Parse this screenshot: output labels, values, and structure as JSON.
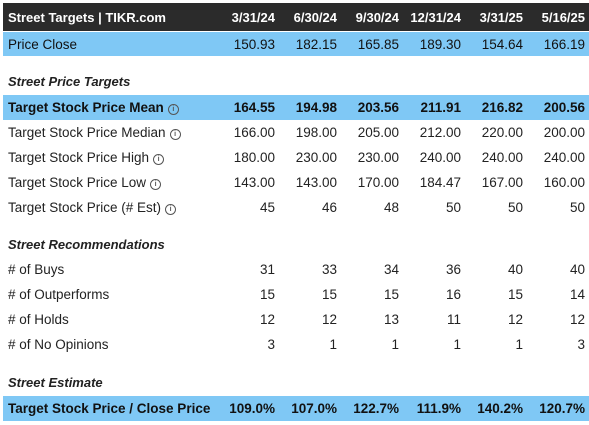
{
  "header": {
    "title": "Street Targets | TIKR.com",
    "dates": [
      "3/31/24",
      "6/30/24",
      "9/30/24",
      "12/31/24",
      "3/31/25",
      "5/16/25"
    ]
  },
  "price_close": {
    "label": "Price Close",
    "values": [
      "150.93",
      "182.15",
      "165.85",
      "189.30",
      "154.64",
      "166.19"
    ]
  },
  "sections": {
    "price_targets": "Street Price Targets",
    "recommendations": "Street Recommendations",
    "estimate": "Street Estimate"
  },
  "price_targets": [
    {
      "label": "Target Stock Price Mean",
      "values": [
        "164.55",
        "194.98",
        "203.56",
        "211.91",
        "216.82",
        "200.56"
      ]
    },
    {
      "label": "Target Stock Price Median",
      "values": [
        "166.00",
        "198.00",
        "205.00",
        "212.00",
        "220.00",
        "200.00"
      ]
    },
    {
      "label": "Target Stock Price High",
      "values": [
        "180.00",
        "230.00",
        "230.00",
        "240.00",
        "240.00",
        "240.00"
      ]
    },
    {
      "label": "Target Stock Price Low",
      "values": [
        "143.00",
        "143.00",
        "170.00",
        "184.47",
        "167.00",
        "160.00"
      ]
    },
    {
      "label": "Target Stock Price (# Est)",
      "values": [
        "45",
        "46",
        "48",
        "50",
        "50",
        "50"
      ]
    }
  ],
  "recommendations": [
    {
      "label": "# of Buys",
      "values": [
        "31",
        "33",
        "34",
        "36",
        "40",
        "40"
      ]
    },
    {
      "label": "# of Outperforms",
      "values": [
        "15",
        "15",
        "15",
        "16",
        "15",
        "14"
      ]
    },
    {
      "label": "# of Holds",
      "values": [
        "12",
        "12",
        "13",
        "11",
        "12",
        "12"
      ]
    },
    {
      "label": "# of No Opinions",
      "values": [
        "3",
        "1",
        "1",
        "1",
        "1",
        "3"
      ]
    }
  ],
  "estimate": {
    "label": "Target Stock Price / Close Price",
    "values": [
      "109.0%",
      "107.0%",
      "122.7%",
      "111.9%",
      "140.2%",
      "120.7%"
    ]
  },
  "colors": {
    "header_bg": "#2b2b2b",
    "highlight": "#7fc8f5"
  },
  "icons": {
    "info": "info-circle-icon"
  }
}
